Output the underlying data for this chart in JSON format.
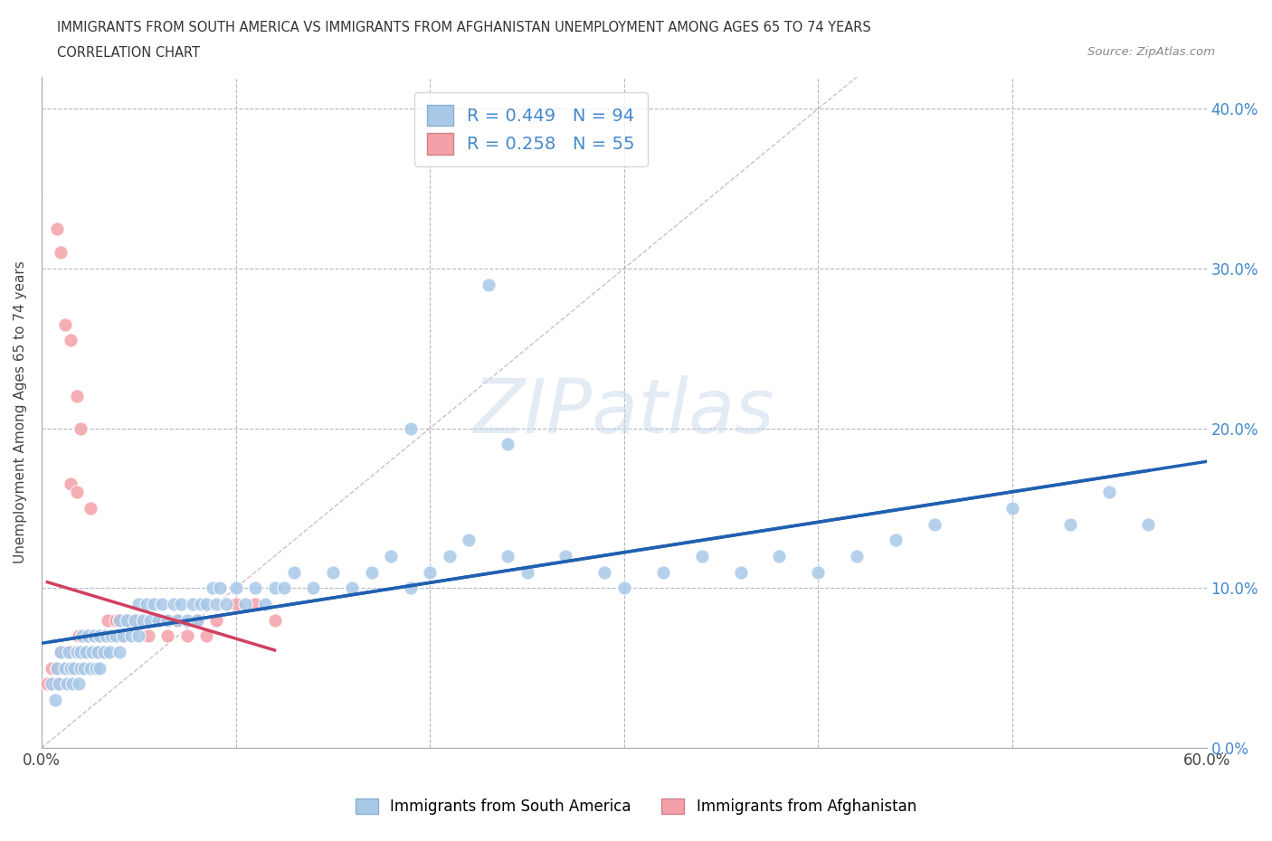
{
  "title_line1": "IMMIGRANTS FROM SOUTH AMERICA VS IMMIGRANTS FROM AFGHANISTAN UNEMPLOYMENT AMONG AGES 65 TO 74 YEARS",
  "title_line2": "CORRELATION CHART",
  "source_text": "Source: ZipAtlas.com",
  "ylabel": "Unemployment Among Ages 65 to 74 years",
  "xlim": [
    0.0,
    0.6
  ],
  "ylim": [
    0.0,
    0.42
  ],
  "xtick_vals": [
    0.0,
    0.1,
    0.2,
    0.3,
    0.4,
    0.5,
    0.6
  ],
  "xtick_labels": [
    "0.0%",
    "",
    "",
    "",
    "",
    "",
    "60.0%"
  ],
  "ytick_vals": [
    0.0,
    0.1,
    0.2,
    0.3,
    0.4
  ],
  "ytick_labels": [
    "0.0%",
    "10.0%",
    "20.0%",
    "30.0%",
    "40.0%"
  ],
  "blue_R": 0.449,
  "blue_N": 94,
  "pink_R": 0.258,
  "pink_N": 55,
  "blue_color": "#a8c8e8",
  "pink_color": "#f4a0a8",
  "blue_line_color": "#2060b0",
  "pink_line_color": "#d04060",
  "watermark_color": "#c8d8e8",
  "legend_label_blue": "Immigrants from South America",
  "legend_label_pink": "Immigrants from Afghanistan",
  "blue_x": [
    0.005,
    0.007,
    0.008,
    0.009,
    0.01,
    0.012,
    0.013,
    0.014,
    0.015,
    0.016,
    0.017,
    0.018,
    0.019,
    0.02,
    0.02,
    0.021,
    0.022,
    0.023,
    0.024,
    0.025,
    0.026,
    0.027,
    0.028,
    0.029,
    0.03,
    0.03,
    0.032,
    0.033,
    0.035,
    0.036,
    0.038,
    0.04,
    0.04,
    0.042,
    0.044,
    0.046,
    0.048,
    0.05,
    0.05,
    0.052,
    0.054,
    0.056,
    0.058,
    0.06,
    0.062,
    0.065,
    0.068,
    0.07,
    0.072,
    0.075,
    0.078,
    0.08,
    0.082,
    0.085,
    0.088,
    0.09,
    0.092,
    0.095,
    0.1,
    0.105,
    0.11,
    0.115,
    0.12,
    0.125,
    0.13,
    0.14,
    0.15,
    0.16,
    0.17,
    0.18,
    0.19,
    0.2,
    0.21,
    0.22,
    0.23,
    0.24,
    0.25,
    0.27,
    0.29,
    0.3,
    0.32,
    0.34,
    0.36,
    0.38,
    0.4,
    0.42,
    0.44,
    0.46,
    0.5,
    0.53,
    0.24,
    0.55,
    0.57,
    0.19
  ],
  "blue_y": [
    0.04,
    0.03,
    0.05,
    0.04,
    0.06,
    0.05,
    0.04,
    0.06,
    0.05,
    0.04,
    0.05,
    0.06,
    0.04,
    0.05,
    0.06,
    0.07,
    0.05,
    0.06,
    0.07,
    0.05,
    0.06,
    0.07,
    0.05,
    0.06,
    0.07,
    0.05,
    0.06,
    0.07,
    0.06,
    0.07,
    0.07,
    0.06,
    0.08,
    0.07,
    0.08,
    0.07,
    0.08,
    0.07,
    0.09,
    0.08,
    0.09,
    0.08,
    0.09,
    0.08,
    0.09,
    0.08,
    0.09,
    0.08,
    0.09,
    0.08,
    0.09,
    0.08,
    0.09,
    0.09,
    0.1,
    0.09,
    0.1,
    0.09,
    0.1,
    0.09,
    0.1,
    0.09,
    0.1,
    0.1,
    0.11,
    0.1,
    0.11,
    0.1,
    0.11,
    0.12,
    0.1,
    0.11,
    0.12,
    0.13,
    0.29,
    0.12,
    0.11,
    0.12,
    0.11,
    0.1,
    0.11,
    0.12,
    0.11,
    0.12,
    0.11,
    0.12,
    0.13,
    0.14,
    0.15,
    0.14,
    0.19,
    0.16,
    0.14,
    0.2
  ],
  "pink_x": [
    0.003,
    0.005,
    0.007,
    0.008,
    0.009,
    0.01,
    0.011,
    0.012,
    0.013,
    0.014,
    0.015,
    0.016,
    0.017,
    0.018,
    0.019,
    0.02,
    0.021,
    0.022,
    0.023,
    0.024,
    0.025,
    0.026,
    0.027,
    0.028,
    0.03,
    0.031,
    0.032,
    0.033,
    0.034,
    0.035,
    0.038,
    0.04,
    0.042,
    0.045,
    0.05,
    0.055,
    0.06,
    0.065,
    0.07,
    0.075,
    0.08,
    0.085,
    0.09,
    0.1,
    0.11,
    0.12,
    0.015,
    0.018,
    0.02,
    0.025,
    0.008,
    0.01,
    0.012,
    0.015,
    0.018
  ],
  "pink_y": [
    0.04,
    0.05,
    0.04,
    0.05,
    0.04,
    0.06,
    0.05,
    0.06,
    0.05,
    0.06,
    0.05,
    0.06,
    0.05,
    0.06,
    0.07,
    0.06,
    0.07,
    0.06,
    0.07,
    0.06,
    0.07,
    0.06,
    0.07,
    0.06,
    0.07,
    0.07,
    0.06,
    0.07,
    0.08,
    0.07,
    0.08,
    0.08,
    0.07,
    0.08,
    0.08,
    0.07,
    0.08,
    0.07,
    0.08,
    0.07,
    0.08,
    0.07,
    0.08,
    0.09,
    0.09,
    0.08,
    0.165,
    0.16,
    0.2,
    0.15,
    0.325,
    0.31,
    0.265,
    0.255,
    0.22
  ]
}
